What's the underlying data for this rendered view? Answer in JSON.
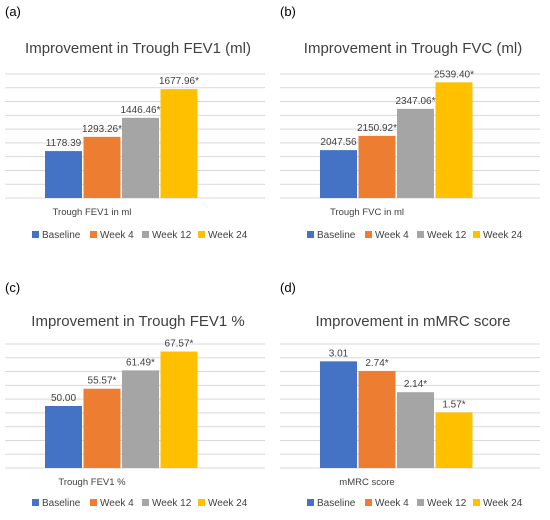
{
  "colors": {
    "Baseline": "#4472C4",
    "Week 4": "#ED7D31",
    "Week 12": "#A5A5A5",
    "Week 24": "#FFC000",
    "grid": "#d9d9d9",
    "text": "#404040"
  },
  "panels": [
    {
      "letter": "(a)",
      "chart_data": {
        "type": "bar",
        "title": "Improvement in Trough FEV1 (ml)",
        "xlabel": "Trough FEV1 in ml",
        "ylim": [
          800,
          1800
        ],
        "grid": true,
        "legend_position": "bottom",
        "series": [
          {
            "name": "Baseline",
            "values": [
              1178.39
            ],
            "label": "1178.39"
          },
          {
            "name": "Week 4",
            "values": [
              1293.26
            ],
            "label": "1293.26*"
          },
          {
            "name": "Week 12",
            "values": [
              1446.46
            ],
            "label": "1446.46*"
          },
          {
            "name": "Week 24",
            "values": [
              1677.96
            ],
            "label": "1677.96*"
          }
        ]
      }
    },
    {
      "letter": "(b)",
      "chart_data": {
        "type": "bar",
        "title": "Improvement in Trough FVC (ml)",
        "xlabel": "Trough FVC in ml",
        "ylim": [
          1700,
          2600
        ],
        "grid": true,
        "legend_position": "bottom",
        "series": [
          {
            "name": "Baseline",
            "values": [
              2047.56
            ],
            "label": "2047.56"
          },
          {
            "name": "Week 4",
            "values": [
              2150.92
            ],
            "label": "2150.92*"
          },
          {
            "name": "Week 12",
            "values": [
              2347.06
            ],
            "label": "2347.06*"
          },
          {
            "name": "Week 24",
            "values": [
              2539.4
            ],
            "label": "2539.40*"
          }
        ]
      }
    },
    {
      "letter": "(c)",
      "chart_data": {
        "type": "bar",
        "title": "Improvement in Trough FEV1 %",
        "xlabel": "Trough FEV1 %",
        "ylim": [
          30,
          70
        ],
        "grid": true,
        "legend_position": "bottom",
        "series": [
          {
            "name": "Baseline",
            "values": [
              50.0
            ],
            "label": "50.00"
          },
          {
            "name": "Week 4",
            "values": [
              55.57
            ],
            "label": "55.57*"
          },
          {
            "name": "Week 12",
            "values": [
              61.49
            ],
            "label": "61.49*"
          },
          {
            "name": "Week 24",
            "values": [
              67.57
            ],
            "label": "67.57*"
          }
        ]
      }
    },
    {
      "letter": "(d)",
      "chart_data": {
        "type": "bar",
        "title": "Improvement in mMRC score",
        "xlabel": "mMRC score",
        "ylim": [
          0,
          3.5
        ],
        "grid": true,
        "legend_position": "bottom",
        "series": [
          {
            "name": "Baseline",
            "values": [
              3.01
            ],
            "label": "3.01"
          },
          {
            "name": "Week 4",
            "values": [
              2.74
            ],
            "label": "2.74*"
          },
          {
            "name": "Week 12",
            "values": [
              2.14
            ],
            "label": "2.14*"
          },
          {
            "name": "Week 24",
            "values": [
              1.57
            ],
            "label": "1.57*"
          }
        ]
      }
    }
  ]
}
